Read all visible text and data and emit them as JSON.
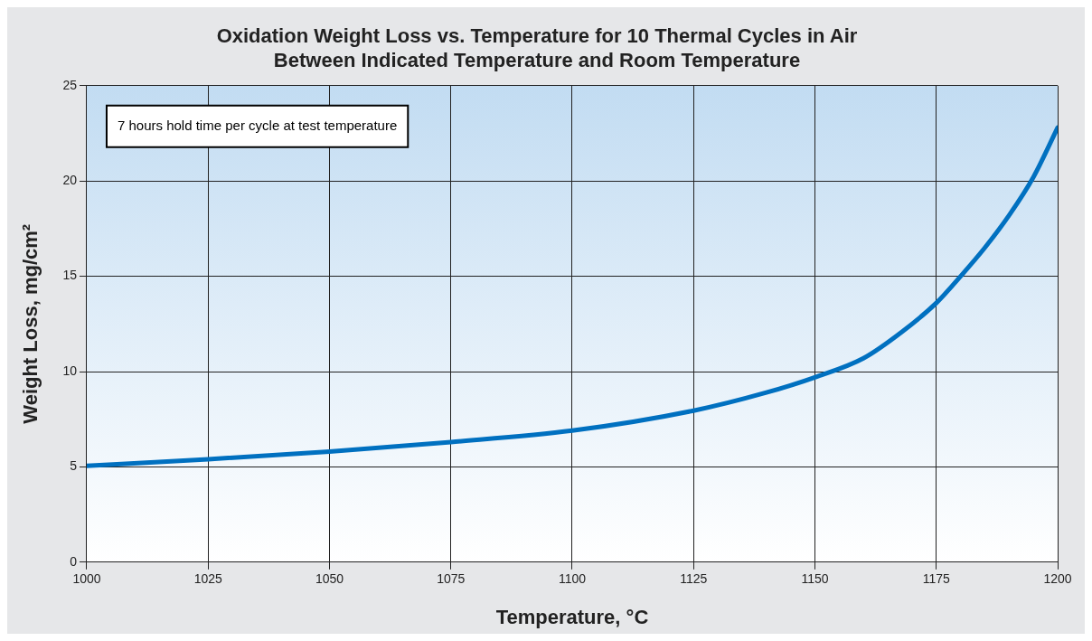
{
  "chart_data": {
    "type": "line",
    "title": "Oxidation Weight Loss vs. Temperature for 10 Thermal Cycles in Air\nBetween Indicated Temperature and Room Temperature",
    "xlabel": "Temperature, °C",
    "ylabel": "Weight Loss, mg/cm²",
    "annotations": [
      "7 hours hold time per cycle at test temperature"
    ],
    "x": [
      1000,
      1025,
      1050,
      1075,
      1100,
      1125,
      1140,
      1150,
      1160,
      1168,
      1175,
      1180,
      1185,
      1190,
      1195,
      1200
    ],
    "series": [
      {
        "color": "#0070c0",
        "values": [
          5.05,
          5.4,
          5.8,
          6.3,
          6.9,
          7.95,
          8.9,
          9.7,
          10.7,
          12.1,
          13.6,
          15,
          16.5,
          18.2,
          20.2,
          22.8
        ]
      }
    ],
    "xlim": [
      1000,
      1200
    ],
    "xticks": [
      1000,
      1025,
      1050,
      1075,
      1100,
      1125,
      1150,
      1175,
      1200
    ],
    "ylim": [
      0,
      25
    ],
    "yticks": [
      0,
      5,
      10,
      15,
      20,
      25
    ],
    "grid": true,
    "legend": false,
    "marker": "none",
    "line_style": "solid"
  }
}
